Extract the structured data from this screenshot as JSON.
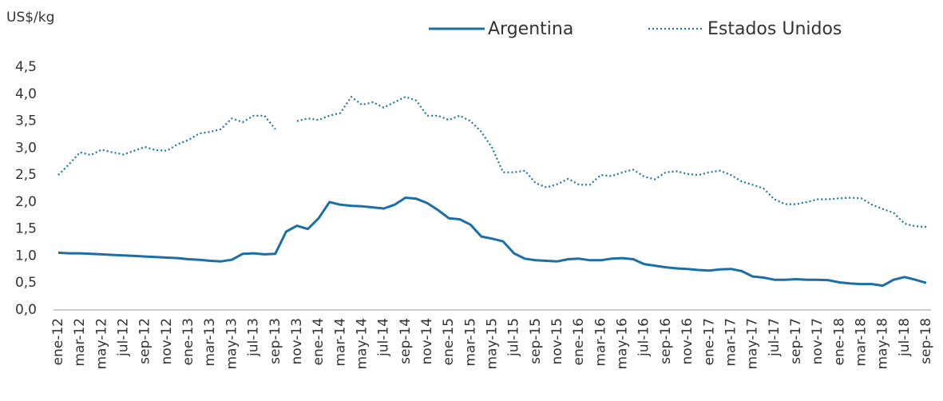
{
  "chart_data": {
    "type": "line",
    "y_label": "US$/kg",
    "categories": [
      "ene-12",
      null,
      "mar-12",
      null,
      "may-12",
      null,
      "jul-12",
      null,
      "sep-12",
      null,
      "nov-12",
      null,
      "ene-13",
      null,
      "mar-13",
      null,
      "may-13",
      null,
      "jul-13",
      null,
      "sep-13",
      null,
      "nov-13",
      null,
      "ene-14",
      null,
      "mar-14",
      null,
      "may-14",
      null,
      "jul-14",
      null,
      "sep-14",
      null,
      "nov-14",
      null,
      "ene-15",
      null,
      "mar-15",
      null,
      "may-15",
      null,
      "jul-15",
      null,
      "sep-15",
      null,
      "nov-15",
      null,
      "ene-16",
      null,
      "mar-16",
      null,
      "may-16",
      null,
      "jul-16",
      null,
      "sep-16",
      null,
      "nov-16",
      null,
      "ene-17",
      null,
      "mar-17",
      null,
      "may-17",
      null,
      "jul-17",
      null,
      "sep-17",
      null,
      "nov-17",
      null,
      "ene-18",
      null,
      "mar-18",
      null,
      "may-18",
      null,
      "jul-18",
      null,
      "sep-18"
    ],
    "series": [
      {
        "name": "Argentina",
        "color": "#1a6fa6",
        "style": "solid",
        "values": [
          1.06,
          1.05,
          1.05,
          1.04,
          1.03,
          1.02,
          1.01,
          1.0,
          0.99,
          0.98,
          0.97,
          0.96,
          0.94,
          0.93,
          0.91,
          0.9,
          0.93,
          1.04,
          1.05,
          1.03,
          1.04,
          1.45,
          1.56,
          1.5,
          1.7,
          2.0,
          1.95,
          1.93,
          1.92,
          1.9,
          1.88,
          1.95,
          2.08,
          2.06,
          1.98,
          1.85,
          1.7,
          1.68,
          1.58,
          1.36,
          1.32,
          1.27,
          1.05,
          0.95,
          0.92,
          0.91,
          0.9,
          0.94,
          0.95,
          0.92,
          0.92,
          0.95,
          0.96,
          0.94,
          0.85,
          0.82,
          0.79,
          0.77,
          0.76,
          0.74,
          0.73,
          0.75,
          0.76,
          0.72,
          0.62,
          0.6,
          0.56,
          0.56,
          0.57,
          0.56,
          0.56,
          0.55,
          0.51,
          0.49,
          0.48,
          0.48,
          0.45,
          0.56,
          0.61,
          0.56,
          0.5
        ]
      },
      {
        "name": "Estados Unidos",
        "color": "#1a75a8",
        "style": "dotted",
        "values": [
          2.5,
          2.7,
          2.92,
          2.87,
          2.97,
          2.92,
          2.88,
          2.95,
          3.02,
          2.96,
          2.95,
          3.07,
          3.15,
          3.27,
          3.3,
          3.35,
          3.55,
          3.48,
          3.6,
          3.6,
          3.35,
          null,
          3.5,
          3.55,
          3.52,
          3.6,
          3.65,
          3.95,
          3.8,
          3.85,
          3.75,
          3.85,
          3.95,
          3.88,
          3.6,
          3.6,
          3.52,
          3.6,
          3.5,
          3.3,
          3.0,
          2.55,
          2.55,
          2.58,
          2.35,
          2.27,
          2.33,
          2.43,
          2.32,
          2.32,
          2.5,
          2.48,
          2.55,
          2.6,
          2.47,
          2.42,
          2.55,
          2.57,
          2.52,
          2.5,
          2.55,
          2.58,
          2.5,
          2.38,
          2.32,
          2.25,
          2.05,
          1.96,
          1.96,
          2.0,
          2.05,
          2.05,
          2.07,
          2.08,
          2.07,
          1.95,
          1.87,
          1.8,
          1.6,
          1.55,
          1.54
        ]
      }
    ],
    "ylim": [
      0,
      4.5
    ],
    "yticks": [
      {
        "value": 0,
        "label": "0,0"
      },
      {
        "value": 0.5,
        "label": "0,5"
      },
      {
        "value": 1,
        "label": "1,0"
      },
      {
        "value": 1.5,
        "label": "1,5"
      },
      {
        "value": 2,
        "label": "2,0"
      },
      {
        "value": 2.5,
        "label": "2,5"
      },
      {
        "value": 3,
        "label": "3,0"
      },
      {
        "value": 3.5,
        "label": "3,5"
      },
      {
        "value": 4,
        "label": "4,0"
      },
      {
        "value": 4.5,
        "label": "4,5"
      }
    ],
    "grid": false
  }
}
